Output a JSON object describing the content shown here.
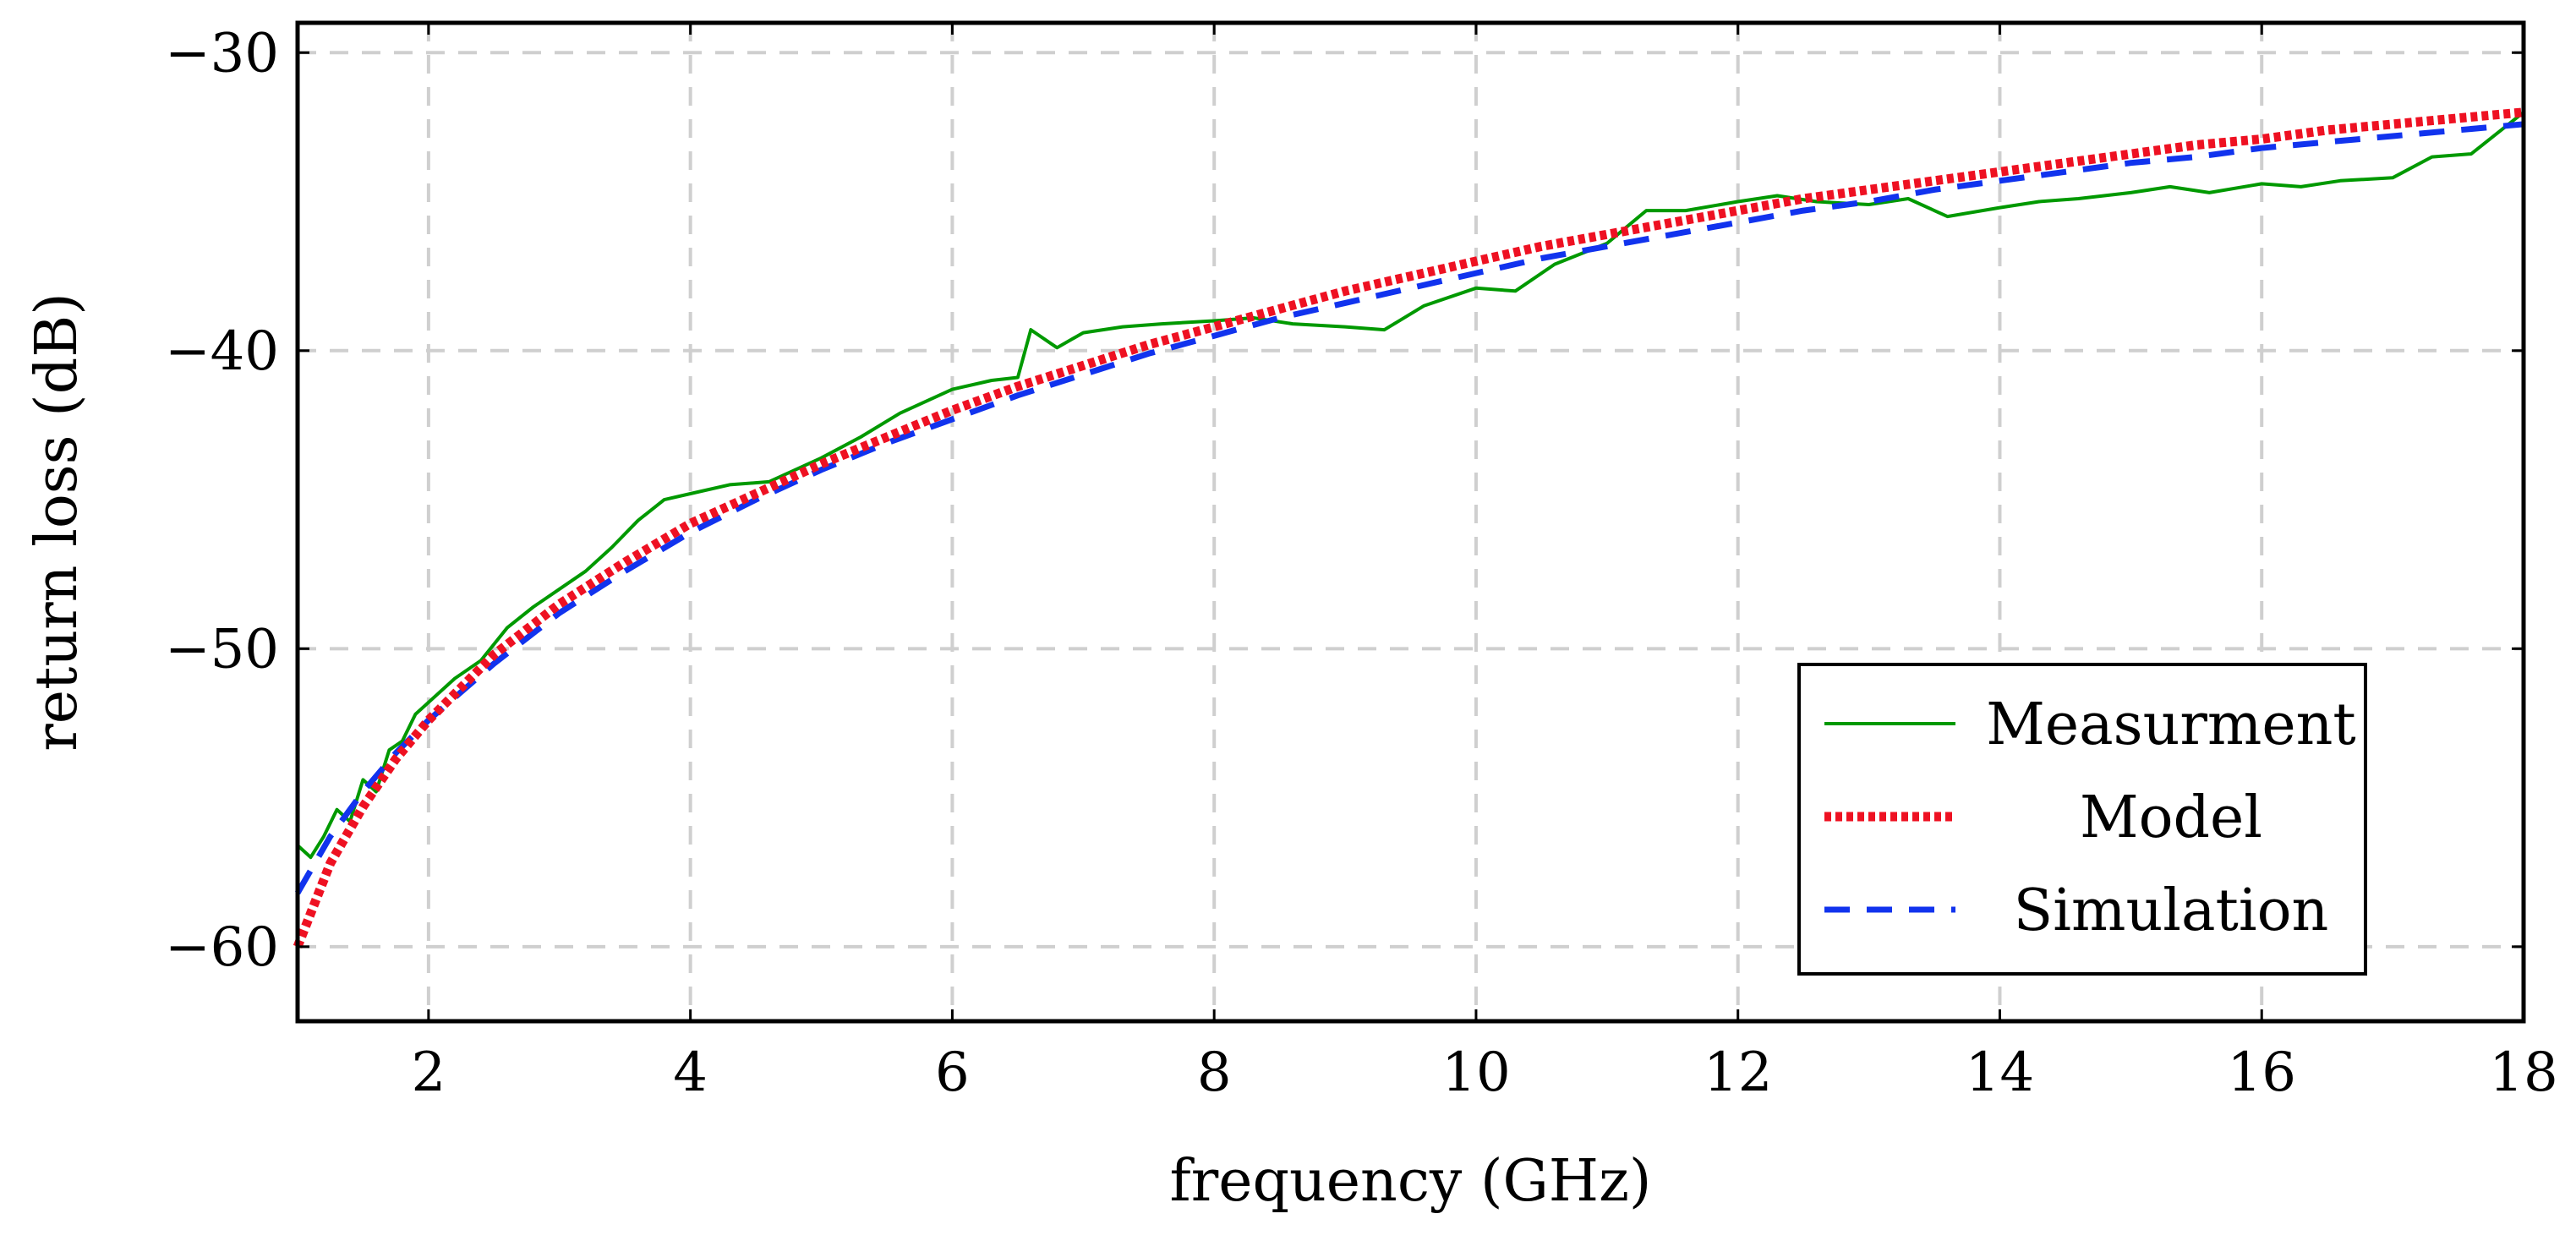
{
  "chart_data": {
    "type": "line",
    "title": "",
    "xlabel": "frequency (GHz)",
    "ylabel": "return loss (dB)",
    "xlim": [
      1,
      18
    ],
    "ylim": [
      -62.5,
      -29
    ],
    "xticks": [
      2,
      4,
      6,
      8,
      10,
      12,
      14,
      16,
      18
    ],
    "yticks": [
      -60,
      -50,
      -40,
      -30
    ],
    "xtick_labels": [
      "2",
      "4",
      "6",
      "8",
      "10",
      "12",
      "14",
      "16",
      "18"
    ],
    "ytick_labels": [
      "−60",
      "−50",
      "−40",
      "−30"
    ],
    "grid": true,
    "legend": {
      "position": "bottom-right"
    },
    "series": [
      {
        "name": "Measurment",
        "color": "#009900",
        "style": "solid",
        "x": [
          1.0,
          1.1,
          1.2,
          1.3,
          1.4,
          1.5,
          1.6,
          1.7,
          1.8,
          1.9,
          2.0,
          2.2,
          2.4,
          2.6,
          2.8,
          3.0,
          3.2,
          3.4,
          3.6,
          3.8,
          4.0,
          4.3,
          4.6,
          5.0,
          5.3,
          5.6,
          6.0,
          6.3,
          6.5,
          6.6,
          6.8,
          7.0,
          7.3,
          7.6,
          8.0,
          8.3,
          8.6,
          9.0,
          9.3,
          9.6,
          10.0,
          10.3,
          10.6,
          11.0,
          11.3,
          11.6,
          12.0,
          12.3,
          12.6,
          13.0,
          13.3,
          13.6,
          14.0,
          14.3,
          14.6,
          15.0,
          15.3,
          15.6,
          16.0,
          16.3,
          16.6,
          17.0,
          17.3,
          17.6,
          18.0
        ],
        "y": [
          -56.6,
          -57.0,
          -56.3,
          -55.4,
          -55.8,
          -54.4,
          -54.8,
          -53.4,
          -53.1,
          -52.2,
          -51.8,
          -51.0,
          -50.4,
          -49.3,
          -48.6,
          -48.0,
          -47.4,
          -46.6,
          -45.7,
          -45.0,
          -44.8,
          -44.5,
          -44.4,
          -43.6,
          -42.9,
          -42.1,
          -41.3,
          -41.0,
          -40.9,
          -39.3,
          -39.9,
          -39.4,
          -39.2,
          -39.1,
          -39.0,
          -38.9,
          -39.1,
          -39.2,
          -39.3,
          -38.5,
          -37.9,
          -38.0,
          -37.1,
          -36.4,
          -35.3,
          -35.3,
          -35.0,
          -34.8,
          -35.0,
          -35.1,
          -34.9,
          -35.5,
          -35.2,
          -35.0,
          -34.9,
          -34.7,
          -34.5,
          -34.7,
          -34.4,
          -34.5,
          -34.3,
          -34.2,
          -33.5,
          -33.4,
          -32.0
        ]
      },
      {
        "name": "Model",
        "color": "#ee1122",
        "style": "dotted",
        "x": [
          1.0,
          1.25,
          1.5,
          1.75,
          2.0,
          2.5,
          3.0,
          3.5,
          4.0,
          4.5,
          5.0,
          5.5,
          6.0,
          6.5,
          7.0,
          7.5,
          8.0,
          8.5,
          9.0,
          9.5,
          10.0,
          10.5,
          11.0,
          11.5,
          12.0,
          12.5,
          13.0,
          13.5,
          14.0,
          14.5,
          15.0,
          15.5,
          16.0,
          16.5,
          17.0,
          17.5,
          18.0
        ],
        "y": [
          -60.0,
          -57.2,
          -55.3,
          -53.7,
          -52.4,
          -50.2,
          -48.5,
          -47.1,
          -45.8,
          -44.8,
          -43.8,
          -42.9,
          -42.0,
          -41.2,
          -40.5,
          -39.8,
          -39.2,
          -38.6,
          -38.0,
          -37.5,
          -37.0,
          -36.5,
          -36.1,
          -35.7,
          -35.3,
          -34.9,
          -34.6,
          -34.3,
          -34.0,
          -33.7,
          -33.4,
          -33.1,
          -32.9,
          -32.6,
          -32.4,
          -32.2,
          -32.0
        ]
      },
      {
        "name": "Simulation",
        "color": "#1133ee",
        "style": "dashed",
        "x": [
          1.0,
          1.25,
          1.5,
          1.75,
          2.0,
          2.5,
          3.0,
          3.5,
          4.0,
          4.5,
          5.0,
          5.5,
          6.0,
          6.5,
          7.0,
          7.5,
          8.0,
          8.5,
          9.0,
          9.5,
          10.0,
          10.5,
          11.0,
          11.5,
          12.0,
          12.5,
          13.0,
          13.5,
          14.0,
          14.5,
          15.0,
          15.5,
          16.0,
          16.5,
          17.0,
          17.5,
          18.0
        ],
        "y": [
          -58.2,
          -56.3,
          -54.8,
          -53.5,
          -52.4,
          -50.5,
          -48.8,
          -47.4,
          -46.1,
          -45.0,
          -44.0,
          -43.1,
          -42.3,
          -41.5,
          -40.8,
          -40.1,
          -39.5,
          -38.9,
          -38.4,
          -37.9,
          -37.4,
          -36.9,
          -36.5,
          -36.1,
          -35.7,
          -35.3,
          -35.0,
          -34.6,
          -34.3,
          -34.0,
          -33.7,
          -33.5,
          -33.2,
          -33.0,
          -32.8,
          -32.6,
          -32.4
        ]
      }
    ]
  }
}
